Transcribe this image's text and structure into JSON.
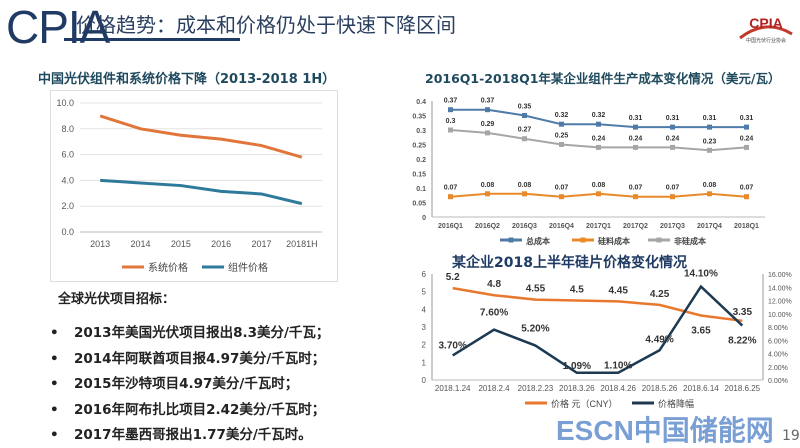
{
  "header": {
    "brand": "CPIA",
    "subtitle": "价格趋势：成本和价格仍处于快速下降区间",
    "logo_text": "CPIA",
    "logo_subtext": "中国光伏行业协会"
  },
  "section": {
    "heading": "全球光伏项目招标：",
    "bullets": [
      "2013年美国光伏项目报出8.3美分/千瓦；",
      "2014年阿联酋项目报4.97美分/千瓦时；",
      "2015年沙特项目4.97美分/千瓦时；",
      "2016年阿布扎比项目2.42美分/千瓦时；",
      "2017年墨西哥报出1.77美分/千瓦时。"
    ]
  },
  "watermark": "ESCN中国储能网",
  "page_number": "19",
  "chart_data": [
    {
      "type": "line",
      "title": "中国光伏组件和系统价格下降（2013-2018 1H）",
      "categories": [
        "2013",
        "2014",
        "2015",
        "2016",
        "2017",
        "20181H"
      ],
      "ylim": [
        0,
        10
      ],
      "yticks": [
        "0.0",
        "2.0",
        "4.0",
        "6.0",
        "8.0",
        "10.0"
      ],
      "grid": true,
      "legend": "bottom",
      "series": [
        {
          "name": "系统价格",
          "color": "#e0763a",
          "values": [
            9.0,
            8.0,
            7.5,
            7.2,
            6.7,
            5.8
          ]
        },
        {
          "name": "组件价格",
          "color": "#2e7a9a",
          "values": [
            4.0,
            3.8,
            3.6,
            3.15,
            2.95,
            2.2
          ]
        }
      ]
    },
    {
      "type": "line",
      "title": "2016Q1-2018Q1年某企业组件生产成本变化情况（美元/瓦）",
      "categories": [
        "2016Q1",
        "2016Q2",
        "2016Q3",
        "2016Q4",
        "2017Q1",
        "2017Q2",
        "2017Q3",
        "2017Q4",
        "2018Q1"
      ],
      "ylim": [
        0,
        0.4
      ],
      "yticks": [
        "0",
        "0.05",
        "0.1",
        "0.15",
        "0.2",
        "0.25",
        "0.3",
        "0.35",
        "0.4"
      ],
      "grid": false,
      "legend": "bottom",
      "series": [
        {
          "name": "总成本",
          "color": "#4f7ba8",
          "values": [
            0.37,
            0.37,
            0.35,
            0.32,
            0.32,
            0.31,
            0.31,
            0.31,
            0.31
          ],
          "labels": [
            "0.37",
            "0.37",
            "0.35",
            "0.32",
            "0.32",
            "0.31",
            "0.31",
            "0.31",
            "0.31"
          ]
        },
        {
          "name": "硅料成本",
          "color": "#e8892a",
          "values": [
            0.07,
            0.08,
            0.08,
            0.07,
            0.08,
            0.07,
            0.07,
            0.08,
            0.07
          ],
          "labels": [
            "0.07",
            "0.08",
            "0.08",
            "0.07",
            "0.08",
            "0.07",
            "0.07",
            "0.08",
            "0.07"
          ]
        },
        {
          "name": "非硅成本",
          "color": "#a6a6a6",
          "values": [
            0.3,
            0.29,
            0.27,
            0.25,
            0.24,
            0.24,
            0.24,
            0.23,
            0.24
          ],
          "labels": [
            "0.3",
            "0.29",
            "0.27",
            "0.25",
            "0.24",
            "0.24",
            "0.24",
            "0.23",
            "0.24"
          ]
        }
      ]
    },
    {
      "type": "line",
      "title": "某企业2018上半年硅片价格变化情况",
      "categories": [
        "2018.1.24",
        "2018.2.4",
        "2018.2.23",
        "2018.3.26",
        "2018.4.26",
        "2018.5.26",
        "2018.6.14",
        "2018.6.25"
      ],
      "ylim": [
        0,
        6
      ],
      "yticks": [
        "0",
        "1",
        "2",
        "3",
        "4",
        "5",
        "6"
      ],
      "y2lim": [
        0,
        16
      ],
      "y2ticks": [
        "0.00%",
        "2.00%",
        "4.00%",
        "6.00%",
        "8.00%",
        "10.00%",
        "12.00%",
        "14.00%",
        "16.00%"
      ],
      "legend": "bottom",
      "series": [
        {
          "name": "价格 元（CNY）",
          "axis": "left",
          "color": "#e8782e",
          "values": [
            5.2,
            4.8,
            4.55,
            4.5,
            4.45,
            4.25,
            3.65,
            3.35
          ],
          "labels": [
            "5.2",
            "4.8",
            "4.55",
            "4.5",
            "4.45",
            "4.25",
            "3.65",
            "3.35"
          ]
        },
        {
          "name": "价格降幅",
          "axis": "right",
          "color": "#1d3a52",
          "values": [
            3.7,
            7.6,
            5.2,
            1.09,
            1.1,
            4.49,
            14.1,
            8.22
          ],
          "labels": [
            "3.70%",
            "7.60%",
            "5.20%",
            "1.09%",
            "1.10%",
            "4.49%",
            "14.10%",
            "8.22%"
          ]
        }
      ]
    }
  ]
}
